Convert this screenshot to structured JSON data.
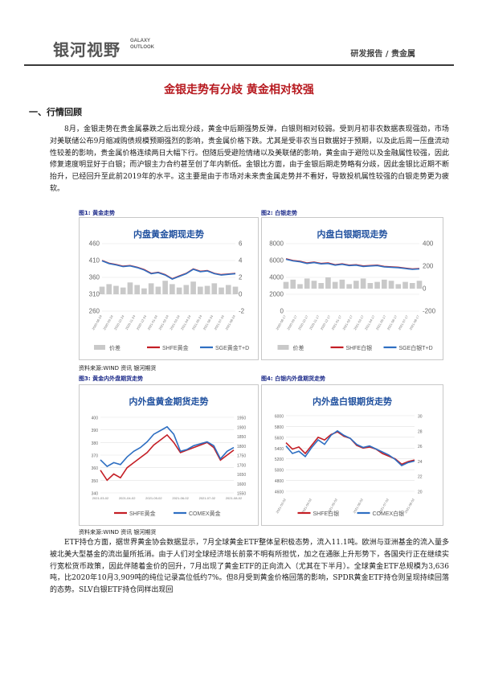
{
  "header": {
    "logo_cn": "银河视野",
    "logo_en_line1": "GALAXY",
    "logo_en_line2": "OUTLOOK",
    "section_tag": "研发报告 / 贵金属"
  },
  "title": "金银走势有分歧 黄金相对较强",
  "section1_heading": "一、行情回顾",
  "para1": "8月，金银走势在贵金属暴跌之后出现分歧，黄金中后期强势反弹，白银则相对较弱。受到月初非农数据表现强劲，市场对美联储公布9月缩减购债规模预期强烈的影响，贵金属价格下跌。尤其是受非农当日数据好于预期，以及此后周一压盘流动性较差的影响，贵金属价格连续两日大幅下行。但随后受避险情绪以及美联储的影响，黄金由于避险以及金融属性较强，因此修复速度明显好于白银；而沪银主力合约甚至创了年内新低。金银比方面，由于金银后期走势略有分歧，因此金银比近期不断抬升，已经回升至此前2019年的水平。这主要是由于市场对未来贵金属走势并不看好，导致投机属性较强的白银走势更为疲软。",
  "para2": "ETF持仓方面，据世界黄金协会数据显示，7月全球黄金ETF整体呈积极态势，流入11.1吨。欧洲与亚洲基金的流入量多被北美大型基金的流出量所抵消。由于人们对全球经济增长前景不明有所担忧，加之在通胀上升形势下，各国央行正在继续实行宽松货币政策，因此伴随着金价的回升，7月出现了黄金ETF的正向流入（尤其在下半月）。全球黄金ETF总规模为3,636吨，比2020年10月3,909吨的纯位记录高位低约7%。但8月受到黄金价格回落的影响，SPDR黄金ETF持仓则呈现持续回落的态势。SLV白银ETF持仓同样出现回",
  "figures": {
    "fig1_label": "图1: 黄金走势",
    "fig2_label": "图2: 白银走势",
    "fig3_label": "图3: 黄金内外盘期货走势",
    "fig4_label": "图4: 白银内外盘期货走势",
    "source_top": "资料来源:WIND 资讯  银河期货",
    "source_bottom": "资料来源:WIND 资讯  银河期货"
  },
  "colors": {
    "red": "#c41e25",
    "blue": "#2e6fc2",
    "gray": "#c9c9c9",
    "title_red": "#b7191f",
    "label_navy": "#1d2b8a"
  },
  "chart_data": [
    {
      "type": "line",
      "title": "内盘黄金期现走势",
      "y_left": {
        "ticks": [
          "460",
          "410",
          "360",
          "310",
          "260"
        ],
        "range": [
          260,
          460
        ]
      },
      "y_right": {
        "ticks": [
          "6",
          "4",
          "2",
          "0",
          "-2"
        ],
        "range": [
          -2,
          6
        ]
      },
      "x_ticks": [
        "2020-08-24",
        "2020-09-24",
        "2020-10-24",
        "2020-11-24",
        "2020-12-24",
        "2021-01-24",
        "2021-02-24",
        "2021-03-24",
        "2021-04-24",
        "2021-05-24",
        "2021-06-24",
        "2021-07-24",
        "2021-08-24"
      ],
      "legend": [
        "价差",
        "SHFE黄金",
        "SGE黄金T+D"
      ],
      "series": [
        {
          "name": "SHFE黄金",
          "axis": "left",
          "values": [
            410,
            402,
            398,
            393,
            395,
            390,
            383,
            372,
            375,
            368,
            356,
            364,
            372,
            385,
            378,
            380,
            372,
            368,
            370,
            372
          ]
        },
        {
          "name": "SGE黄金T+D",
          "axis": "left",
          "values": [
            409,
            401,
            397,
            392,
            394,
            389,
            382,
            371,
            374,
            367,
            355,
            363,
            371,
            384,
            377,
            379,
            371,
            367,
            369,
            371
          ]
        },
        {
          "name": "价差",
          "axis": "right",
          "values": [
            0.9,
            1.2,
            1.0,
            0.8,
            1.4,
            1.1,
            0.7,
            1.3,
            0.9,
            1.6,
            1.2,
            0.8,
            1.1,
            1.5,
            0.9,
            1.0,
            1.3,
            0.8,
            1.1,
            0.9
          ]
        }
      ]
    },
    {
      "type": "line",
      "title": "内盘白银期现走势",
      "y_left": {
        "ticks": [
          "8000",
          "6000",
          "4000",
          "2000",
          "0"
        ],
        "range": [
          0,
          8000
        ]
      },
      "y_right": {
        "ticks": [
          "400",
          "200",
          "0",
          "-200"
        ],
        "range": [
          -200,
          400
        ]
      },
      "x_ticks": [
        "2020-08-17",
        "2020-09-17",
        "2020-10-17",
        "2020-11-17",
        "2020-12-17",
        "2021-01-17",
        "2021-02-17",
        "2021-03-17",
        "2021-04-17",
        "2021-05-17",
        "2021-06-17",
        "2021-07-17",
        "2021-08-17"
      ],
      "legend": [
        "价差",
        "SHFE白银",
        "SGE白银T+D"
      ],
      "series": [
        {
          "name": "SHFE白银",
          "axis": "left",
          "values": [
            6200,
            6000,
            5900,
            5700,
            5800,
            5650,
            5700,
            5500,
            5600,
            5450,
            5500,
            5350,
            5400,
            5450,
            5300,
            5250,
            5200,
            5100,
            5000,
            5050
          ]
        },
        {
          "name": "SGE白银T+D",
          "axis": "left",
          "values": [
            6150,
            5950,
            5850,
            5650,
            5750,
            5600,
            5650,
            5450,
            5550,
            5400,
            5450,
            5300,
            5350,
            5400,
            5250,
            5200,
            5150,
            5050,
            4950,
            5000
          ]
        },
        {
          "name": "价差",
          "axis": "right",
          "values": [
            60,
            80,
            40,
            90,
            70,
            50,
            100,
            60,
            80,
            40,
            70,
            90,
            50,
            60,
            80,
            70,
            40,
            60,
            50,
            70
          ]
        }
      ]
    },
    {
      "type": "line",
      "title": "内外盘黄金期货走势",
      "y_left": {
        "ticks": [
          "400",
          "390",
          "380",
          "370",
          "360",
          "350",
          "340"
        ],
        "range": [
          340,
          400
        ]
      },
      "y_right": {
        "ticks": [
          "1950",
          "1900",
          "1850",
          "1800",
          "1750",
          "1700",
          "1650",
          "1600",
          "1550"
        ],
        "range": [
          1550,
          1950
        ]
      },
      "x_ticks": [
        "2021-03-02",
        "2021-04-02",
        "2021-05-02",
        "2021-06-02",
        "2021-07-02",
        "2021-08-02"
      ],
      "legend": [
        "SHFE黄金",
        "COMEX黄金"
      ],
      "series": [
        {
          "name": "SHFE黄金",
          "axis": "left",
          "values": [
            358,
            350,
            355,
            352,
            360,
            364,
            368,
            372,
            378,
            382,
            386,
            380,
            372,
            374,
            376,
            378,
            380,
            376,
            366,
            370,
            374
          ]
        },
        {
          "name": "COMEX黄金",
          "axis": "right",
          "values": [
            1725,
            1690,
            1710,
            1700,
            1740,
            1770,
            1790,
            1820,
            1860,
            1880,
            1900,
            1860,
            1770,
            1780,
            1800,
            1810,
            1820,
            1800,
            1730,
            1770,
            1790
          ]
        }
      ]
    },
    {
      "type": "line",
      "title": "内外盘白银期货走势",
      "y_left": {
        "ticks": [
          "6000",
          "5800",
          "5600",
          "5400",
          "5200",
          "5000",
          "4800",
          "4600"
        ],
        "range": [
          4600,
          6000
        ]
      },
      "y_right": {
        "ticks": [
          "30",
          "28",
          "26",
          "24",
          "22",
          "20"
        ],
        "range": [
          20,
          30
        ]
      },
      "x_ticks": [
        "2021-03-02",
        "2021-04-02",
        "2021-05-02",
        "2021-06-02",
        "2021-07-02",
        "2021-08-02"
      ],
      "legend": [
        "SHFE白银",
        "COMEX白银"
      ],
      "series": [
        {
          "name": "SHFE白银",
          "axis": "left",
          "values": [
            5500,
            5380,
            5420,
            5300,
            5450,
            5600,
            5550,
            5650,
            5700,
            5620,
            5580,
            5450,
            5400,
            5420,
            5380,
            5300,
            5250,
            5200,
            5100,
            5150,
            5180
          ]
        },
        {
          "name": "COMEX白银",
          "axis": "right",
          "values": [
            26.0,
            25.0,
            25.3,
            24.6,
            25.8,
            26.8,
            26.2,
            27.4,
            28.0,
            27.4,
            27.0,
            26.2,
            25.8,
            26.0,
            25.6,
            25.2,
            24.8,
            24.2,
            23.4,
            23.8,
            24.0
          ]
        }
      ]
    }
  ]
}
